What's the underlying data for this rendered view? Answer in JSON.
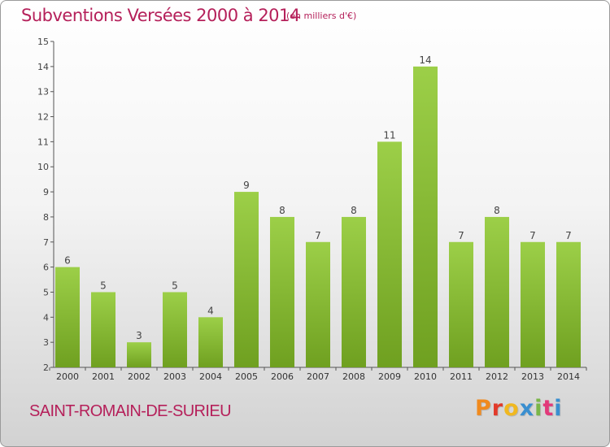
{
  "header": {
    "title": "Subventions Versées 2000 à 2014",
    "unit": "(en milliers d'€)"
  },
  "footer": {
    "commune": "SAINT-ROMAIN-DE-SURIEU",
    "logo_text": "Proxiti"
  },
  "colors": {
    "title": "#b5205a",
    "bar_top": "#9ccf48",
    "bar_bottom": "#6fa020",
    "axis": "#555555",
    "logo": [
      "#f08a1e",
      "#e23a2a",
      "#f0b820",
      "#3a8fd0",
      "#7ab648",
      "#e23a7a",
      "#3a8fd0"
    ]
  },
  "chart_data": {
    "type": "bar",
    "title": "Subventions Versées 2000 à 2014",
    "ylabel": "",
    "xlabel": "",
    "categories": [
      "2000",
      "2001",
      "2002",
      "2003",
      "2004",
      "2005",
      "2006",
      "2007",
      "2008",
      "2009",
      "2010",
      "2011",
      "2012",
      "2013",
      "2014"
    ],
    "values": [
      6,
      5,
      3,
      5,
      4,
      9,
      8,
      7,
      8,
      11,
      14,
      7,
      8,
      7,
      7
    ],
    "ylim": [
      2,
      15
    ],
    "yticks": [
      2,
      3,
      4,
      5,
      6,
      7,
      8,
      9,
      10,
      11,
      12,
      13,
      14,
      15
    ],
    "grid": false,
    "data_labels": true
  }
}
